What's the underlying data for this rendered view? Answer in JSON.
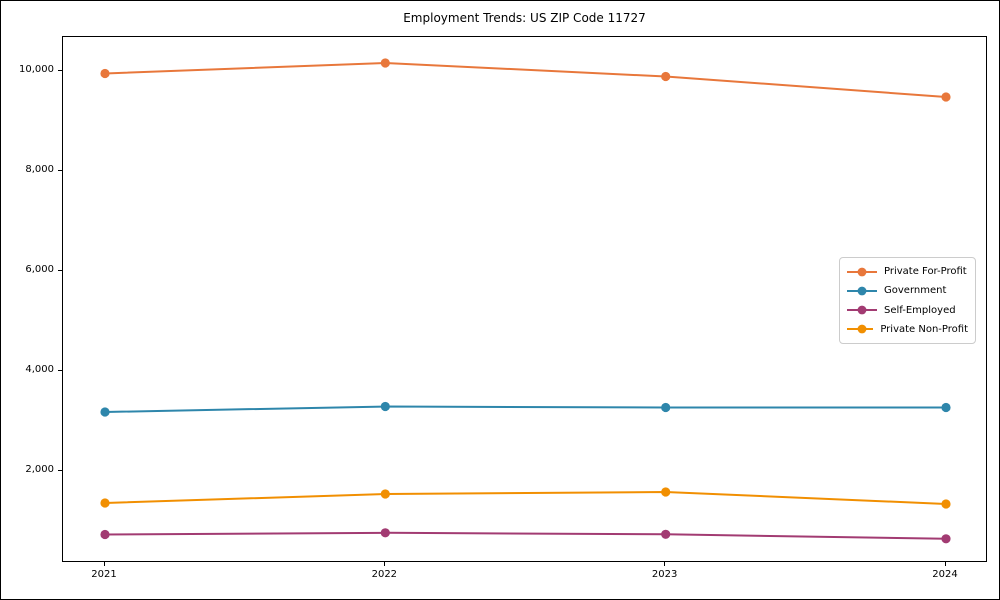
{
  "figure": {
    "title": "Employment Trends: US ZIP Code 11727",
    "background_color": "#ffffff",
    "spine_color": "#000000",
    "legend_border_color": "#cccccc"
  },
  "chart_data": {
    "type": "line",
    "title": "Employment Trends: US ZIP Code 11727",
    "xlabel": "",
    "ylabel": "",
    "x": [
      "2021",
      "2022",
      "2023",
      "2024"
    ],
    "series": [
      {
        "name": "Private For-Profit",
        "color": "#E8773B",
        "marker": "o",
        "values": [
          9950,
          10160,
          9890,
          9480
        ]
      },
      {
        "name": "Government",
        "color": "#2E86AB",
        "marker": "o",
        "values": [
          3180,
          3290,
          3270,
          3270
        ]
      },
      {
        "name": "Self-Employed",
        "color": "#A23B72",
        "marker": "o",
        "values": [
          730,
          765,
          735,
          645
        ]
      },
      {
        "name": "Private Non-Profit",
        "color": "#F18F01",
        "marker": "o",
        "values": [
          1360,
          1540,
          1580,
          1340
        ]
      }
    ],
    "y_ticks": [
      {
        "value": 2000,
        "label": "2,000"
      },
      {
        "value": 4000,
        "label": "4,000"
      },
      {
        "value": 6000,
        "label": "6,000"
      },
      {
        "value": 8000,
        "label": "8,000"
      },
      {
        "value": 10000,
        "label": "10,000"
      }
    ],
    "ylim": [
      160,
      10680
    ],
    "grid": false,
    "legend_position": "center right",
    "legend_entries": [
      "Private For-Profit",
      "Government",
      "Self-Employed",
      "Private Non-Profit"
    ]
  }
}
